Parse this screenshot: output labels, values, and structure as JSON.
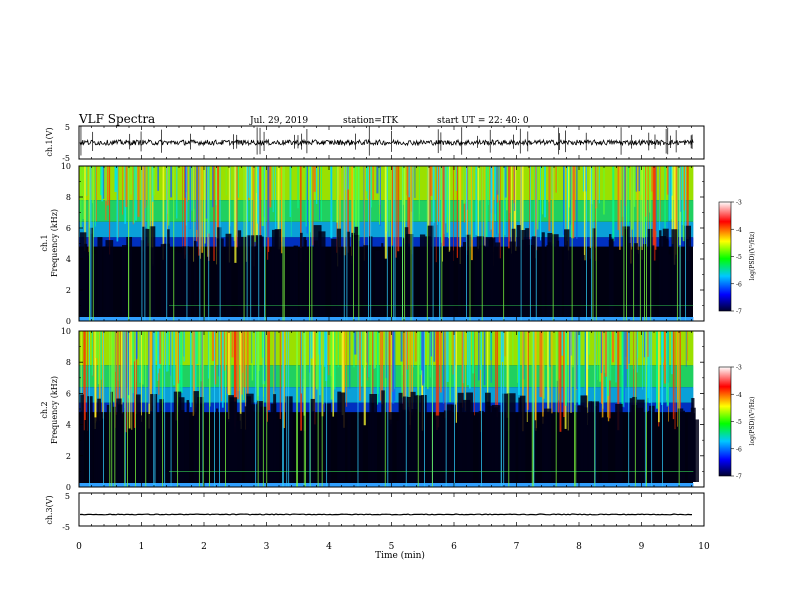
{
  "header": {
    "title": "VLF Spectra",
    "date": "Jul. 29, 2019",
    "station": "station=ITK",
    "start": "start UT = 22: 40: 0"
  },
  "chart_data": [
    {
      "type": "line",
      "panel": "ch1-waveform",
      "ylabel": "ch.1(V)",
      "yticks": [
        "5",
        "-5"
      ],
      "ylim": [
        -5,
        5
      ],
      "baseline_value": 0,
      "color": "#000000"
    },
    {
      "type": "heatmap",
      "panel": "ch1-spectrogram",
      "ylabel_line1": "ch.1",
      "ylabel_line2": "Frequency (kHz)",
      "yticks": [
        "0",
        "2",
        "4",
        "6",
        "8",
        "10"
      ],
      "ylim": [
        0,
        10
      ],
      "colorbar": {
        "label": "log(PSD)(V²/Hz)",
        "ticks": [
          "-3",
          "-4",
          "-5",
          "-6",
          "-7"
        ],
        "range": [
          -7,
          -3
        ],
        "colors": [
          "#000030",
          "#0000ff",
          "#00c8ff",
          "#00ff00",
          "#ffff00",
          "#ff0000",
          "#ffffff"
        ]
      }
    },
    {
      "type": "heatmap",
      "panel": "ch2-spectrogram",
      "ylabel_line1": "ch.2",
      "ylabel_line2": "Frequency (kHz)",
      "yticks": [
        "0",
        "2",
        "4",
        "6",
        "8",
        "10"
      ],
      "ylim": [
        0,
        10
      ],
      "colorbar": {
        "label": "log(PSD)(V²/Hz)",
        "ticks": [
          "-3",
          "-4",
          "-5",
          "-6",
          "-7"
        ],
        "range": [
          -7,
          -3
        ],
        "colors": [
          "#000030",
          "#0000ff",
          "#00c8ff",
          "#00ff00",
          "#ffff00",
          "#ff0000",
          "#ffffff"
        ]
      }
    },
    {
      "type": "line",
      "panel": "ch3-waveform",
      "ylabel": "ch.3(V)",
      "yticks": [
        "5",
        "-5"
      ],
      "ylim": [
        -5,
        5
      ],
      "baseline_value": -1.5,
      "color": "#000000"
    }
  ],
  "xaxis": {
    "label": "Time (min)",
    "ticks": [
      "0",
      "1",
      "2",
      "3",
      "4",
      "5",
      "6",
      "7",
      "8",
      "9",
      "10"
    ],
    "xlim": [
      0,
      10
    ],
    "data_end": 9.83
  }
}
